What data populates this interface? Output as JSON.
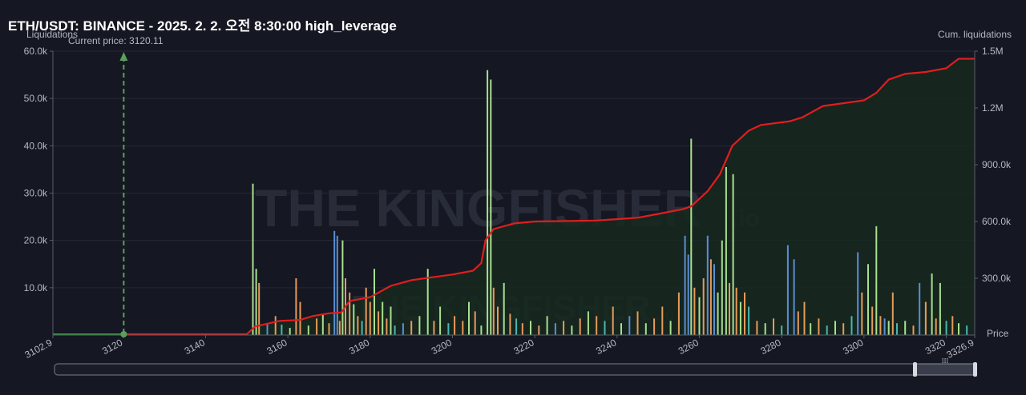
{
  "colors": {
    "background": "#151722",
    "cum_line": "#e01e1e",
    "cum_fill": "#16291f",
    "current_line": "#5aa05a",
    "pre_line": "#2e9a2e",
    "bar_green": "#a8e08e",
    "bar_blue": "#5b8ed6",
    "bar_orange": "#e89a5a",
    "bar_teal": "#48b8b0"
  },
  "chart_data": {
    "type": "bar",
    "title": "ETH/USDT: BINANCE - 2025. 2. 2. 오전 8:30:00 high_leverage",
    "ylabel": "Liquidations",
    "y2label": "Cum. liquidations",
    "xlabel": "Price",
    "current_price_label": "Current price: 3120.11",
    "current_price": 3120.11,
    "watermark_main": "THE KINGFISHER",
    "watermark_suffix": ".io",
    "xlim": [
      3102.9,
      3326.9
    ],
    "ylim": [
      0,
      60000
    ],
    "y2lim": [
      0,
      1500000
    ],
    "x_ticks": [
      {
        "value": 3102.9,
        "label": "3102.9"
      },
      {
        "value": 3120,
        "label": "3120"
      },
      {
        "value": 3140,
        "label": "3140"
      },
      {
        "value": 3160,
        "label": "3160"
      },
      {
        "value": 3180,
        "label": "3180"
      },
      {
        "value": 3200,
        "label": "3200"
      },
      {
        "value": 3220,
        "label": "3220"
      },
      {
        "value": 3240,
        "label": "3240"
      },
      {
        "value": 3260,
        "label": "3260"
      },
      {
        "value": 3280,
        "label": "3280"
      },
      {
        "value": 3300,
        "label": "3300"
      },
      {
        "value": 3320,
        "label": "3320"
      },
      {
        "value": 3326.9,
        "label": "3326.9"
      }
    ],
    "y_ticks": [
      {
        "value": 10000,
        "label": "10.0k"
      },
      {
        "value": 20000,
        "label": "20.0k"
      },
      {
        "value": 30000,
        "label": "30.0k"
      },
      {
        "value": 40000,
        "label": "40.0k"
      },
      {
        "value": 50000,
        "label": "50.0k"
      },
      {
        "value": 60000,
        "label": "60.0k"
      }
    ],
    "y2_ticks": [
      {
        "value": 300000,
        "label": "300.0k"
      },
      {
        "value": 600000,
        "label": "600.0k"
      },
      {
        "value": 900000,
        "label": "900.0k"
      },
      {
        "value": 1200000,
        "label": "1.2M"
      },
      {
        "value": 1500000,
        "label": "1.5M"
      }
    ],
    "bars": [
      {
        "x": 3151.5,
        "y": 32000,
        "c": "g"
      },
      {
        "x": 3152.3,
        "y": 14000,
        "c": "g"
      },
      {
        "x": 3153.0,
        "y": 11000,
        "c": "o"
      },
      {
        "x": 3155.0,
        "y": 2500,
        "c": "b"
      },
      {
        "x": 3157.0,
        "y": 4000,
        "c": "o"
      },
      {
        "x": 3158.5,
        "y": 2200,
        "c": "t"
      },
      {
        "x": 3160.5,
        "y": 1500,
        "c": "g"
      },
      {
        "x": 3162.0,
        "y": 12000,
        "c": "o"
      },
      {
        "x": 3163.0,
        "y": 7000,
        "c": "o"
      },
      {
        "x": 3165.0,
        "y": 2000,
        "c": "g"
      },
      {
        "x": 3167.0,
        "y": 3500,
        "c": "o"
      },
      {
        "x": 3168.5,
        "y": 4500,
        "c": "g"
      },
      {
        "x": 3170.0,
        "y": 2500,
        "c": "o"
      },
      {
        "x": 3171.3,
        "y": 22000,
        "c": "b"
      },
      {
        "x": 3172.0,
        "y": 21000,
        "c": "b"
      },
      {
        "x": 3172.6,
        "y": 3000,
        "c": "o"
      },
      {
        "x": 3173.3,
        "y": 20000,
        "c": "g"
      },
      {
        "x": 3174.0,
        "y": 12000,
        "c": "o"
      },
      {
        "x": 3175.0,
        "y": 9000,
        "c": "o"
      },
      {
        "x": 3176.0,
        "y": 6500,
        "c": "g"
      },
      {
        "x": 3177.0,
        "y": 4000,
        "c": "o"
      },
      {
        "x": 3178.0,
        "y": 3000,
        "c": "t"
      },
      {
        "x": 3179.0,
        "y": 10000,
        "c": "o"
      },
      {
        "x": 3180.0,
        "y": 7000,
        "c": "o"
      },
      {
        "x": 3181.0,
        "y": 14000,
        "c": "g"
      },
      {
        "x": 3182.0,
        "y": 5000,
        "c": "o"
      },
      {
        "x": 3183.0,
        "y": 7000,
        "c": "g"
      },
      {
        "x": 3184.0,
        "y": 3500,
        "c": "o"
      },
      {
        "x": 3185.0,
        "y": 6000,
        "c": "g"
      },
      {
        "x": 3186.0,
        "y": 2000,
        "c": "t"
      },
      {
        "x": 3188.0,
        "y": 2500,
        "c": "b"
      },
      {
        "x": 3190.0,
        "y": 3000,
        "c": "o"
      },
      {
        "x": 3192.0,
        "y": 4000,
        "c": "g"
      },
      {
        "x": 3194.0,
        "y": 14000,
        "c": "g"
      },
      {
        "x": 3195.5,
        "y": 3000,
        "c": "o"
      },
      {
        "x": 3197.0,
        "y": 6000,
        "c": "g"
      },
      {
        "x": 3199.0,
        "y": 2500,
        "c": "t"
      },
      {
        "x": 3200.5,
        "y": 4000,
        "c": "o"
      },
      {
        "x": 3202.5,
        "y": 3000,
        "c": "o"
      },
      {
        "x": 3204.0,
        "y": 7000,
        "c": "g"
      },
      {
        "x": 3205.5,
        "y": 5000,
        "c": "o"
      },
      {
        "x": 3207.0,
        "y": 2000,
        "c": "g"
      },
      {
        "x": 3208.5,
        "y": 56000,
        "c": "g"
      },
      {
        "x": 3209.3,
        "y": 54000,
        "c": "g"
      },
      {
        "x": 3210.0,
        "y": 10000,
        "c": "o"
      },
      {
        "x": 3211.0,
        "y": 6000,
        "c": "o"
      },
      {
        "x": 3212.5,
        "y": 11000,
        "c": "g"
      },
      {
        "x": 3214.0,
        "y": 4500,
        "c": "o"
      },
      {
        "x": 3215.5,
        "y": 3500,
        "c": "t"
      },
      {
        "x": 3217.0,
        "y": 2500,
        "c": "o"
      },
      {
        "x": 3219.0,
        "y": 3000,
        "c": "g"
      },
      {
        "x": 3221.0,
        "y": 2000,
        "c": "o"
      },
      {
        "x": 3223.0,
        "y": 4000,
        "c": "g"
      },
      {
        "x": 3225.0,
        "y": 2500,
        "c": "b"
      },
      {
        "x": 3227.0,
        "y": 3000,
        "c": "o"
      },
      {
        "x": 3229.0,
        "y": 2000,
        "c": "g"
      },
      {
        "x": 3231.0,
        "y": 3500,
        "c": "o"
      },
      {
        "x": 3233.0,
        "y": 5000,
        "c": "g"
      },
      {
        "x": 3235.0,
        "y": 4000,
        "c": "o"
      },
      {
        "x": 3237.0,
        "y": 3000,
        "c": "t"
      },
      {
        "x": 3239.0,
        "y": 6000,
        "c": "o"
      },
      {
        "x": 3241.0,
        "y": 2500,
        "c": "g"
      },
      {
        "x": 3243.0,
        "y": 4000,
        "c": "b"
      },
      {
        "x": 3245.0,
        "y": 5000,
        "c": "o"
      },
      {
        "x": 3247.0,
        "y": 2500,
        "c": "g"
      },
      {
        "x": 3249.0,
        "y": 3500,
        "c": "o"
      },
      {
        "x": 3251.0,
        "y": 6000,
        "c": "o"
      },
      {
        "x": 3253.0,
        "y": 3000,
        "c": "g"
      },
      {
        "x": 3255.0,
        "y": 9000,
        "c": "o"
      },
      {
        "x": 3256.5,
        "y": 21000,
        "c": "b"
      },
      {
        "x": 3257.3,
        "y": 17000,
        "c": "b"
      },
      {
        "x": 3258.0,
        "y": 41500,
        "c": "g"
      },
      {
        "x": 3258.8,
        "y": 10000,
        "c": "o"
      },
      {
        "x": 3260.0,
        "y": 8000,
        "c": "g"
      },
      {
        "x": 3261.0,
        "y": 12000,
        "c": "o"
      },
      {
        "x": 3262.0,
        "y": 21000,
        "c": "b"
      },
      {
        "x": 3262.8,
        "y": 16000,
        "c": "o"
      },
      {
        "x": 3263.6,
        "y": 15000,
        "c": "b"
      },
      {
        "x": 3264.5,
        "y": 9000,
        "c": "g"
      },
      {
        "x": 3265.5,
        "y": 20000,
        "c": "g"
      },
      {
        "x": 3266.5,
        "y": 35500,
        "c": "g"
      },
      {
        "x": 3267.3,
        "y": 11000,
        "c": "o"
      },
      {
        "x": 3268.2,
        "y": 34000,
        "c": "g"
      },
      {
        "x": 3269.0,
        "y": 10000,
        "c": "o"
      },
      {
        "x": 3270.0,
        "y": 7000,
        "c": "g"
      },
      {
        "x": 3271.0,
        "y": 9000,
        "c": "o"
      },
      {
        "x": 3272.0,
        "y": 6000,
        "c": "t"
      },
      {
        "x": 3274.0,
        "y": 3000,
        "c": "o"
      },
      {
        "x": 3276.0,
        "y": 2500,
        "c": "g"
      },
      {
        "x": 3278.0,
        "y": 3500,
        "c": "o"
      },
      {
        "x": 3280.0,
        "y": 2000,
        "c": "t"
      },
      {
        "x": 3281.5,
        "y": 19000,
        "c": "b"
      },
      {
        "x": 3283.0,
        "y": 16000,
        "c": "b"
      },
      {
        "x": 3284.0,
        "y": 5000,
        "c": "o"
      },
      {
        "x": 3285.5,
        "y": 7000,
        "c": "o"
      },
      {
        "x": 3287.0,
        "y": 2500,
        "c": "g"
      },
      {
        "x": 3289.0,
        "y": 3500,
        "c": "o"
      },
      {
        "x": 3291.0,
        "y": 2000,
        "c": "t"
      },
      {
        "x": 3293.0,
        "y": 3000,
        "c": "g"
      },
      {
        "x": 3295.0,
        "y": 2500,
        "c": "o"
      },
      {
        "x": 3297.0,
        "y": 4000,
        "c": "t"
      },
      {
        "x": 3298.5,
        "y": 17500,
        "c": "b"
      },
      {
        "x": 3299.5,
        "y": 9000,
        "c": "o"
      },
      {
        "x": 3301.0,
        "y": 15000,
        "c": "g"
      },
      {
        "x": 3302.0,
        "y": 6000,
        "c": "o"
      },
      {
        "x": 3303.0,
        "y": 23000,
        "c": "g"
      },
      {
        "x": 3304.0,
        "y": 4000,
        "c": "o"
      },
      {
        "x": 3305.0,
        "y": 3500,
        "c": "b"
      },
      {
        "x": 3306.0,
        "y": 3000,
        "c": "g"
      },
      {
        "x": 3307.0,
        "y": 9000,
        "c": "o"
      },
      {
        "x": 3308.0,
        "y": 2500,
        "c": "t"
      },
      {
        "x": 3310.0,
        "y": 3000,
        "c": "g"
      },
      {
        "x": 3312.0,
        "y": 2000,
        "c": "o"
      },
      {
        "x": 3313.5,
        "y": 11000,
        "c": "b"
      },
      {
        "x": 3315.0,
        "y": 7000,
        "c": "o"
      },
      {
        "x": 3316.5,
        "y": 13000,
        "c": "g"
      },
      {
        "x": 3317.5,
        "y": 3500,
        "c": "o"
      },
      {
        "x": 3318.5,
        "y": 11000,
        "c": "g"
      },
      {
        "x": 3320.0,
        "y": 3000,
        "c": "t"
      },
      {
        "x": 3321.5,
        "y": 4000,
        "c": "o"
      },
      {
        "x": 3323.0,
        "y": 2500,
        "c": "g"
      },
      {
        "x": 3325.0,
        "y": 2000,
        "c": "t"
      }
    ],
    "cumulative": [
      [
        3102.9,
        0
      ],
      [
        3150,
        0
      ],
      [
        3152,
        45000
      ],
      [
        3155,
        60000
      ],
      [
        3158,
        75000
      ],
      [
        3163,
        80000
      ],
      [
        3166,
        100000
      ],
      [
        3170,
        115000
      ],
      [
        3173,
        120000
      ],
      [
        3175,
        180000
      ],
      [
        3180,
        200000
      ],
      [
        3185,
        260000
      ],
      [
        3190,
        290000
      ],
      [
        3195,
        305000
      ],
      [
        3200,
        320000
      ],
      [
        3205,
        340000
      ],
      [
        3207,
        380000
      ],
      [
        3208,
        500000
      ],
      [
        3210,
        560000
      ],
      [
        3215,
        590000
      ],
      [
        3220,
        600000
      ],
      [
        3235,
        605000
      ],
      [
        3245,
        620000
      ],
      [
        3250,
        640000
      ],
      [
        3256,
        665000
      ],
      [
        3258,
        680000
      ],
      [
        3262,
        760000
      ],
      [
        3265,
        850000
      ],
      [
        3268,
        1000000
      ],
      [
        3272,
        1080000
      ],
      [
        3275,
        1110000
      ],
      [
        3282,
        1130000
      ],
      [
        3285,
        1150000
      ],
      [
        3290,
        1210000
      ],
      [
        3300,
        1240000
      ],
      [
        3303,
        1280000
      ],
      [
        3306,
        1350000
      ],
      [
        3310,
        1380000
      ],
      [
        3315,
        1390000
      ],
      [
        3320,
        1410000
      ],
      [
        3323,
        1460000
      ],
      [
        3326.9,
        1460000
      ]
    ]
  }
}
